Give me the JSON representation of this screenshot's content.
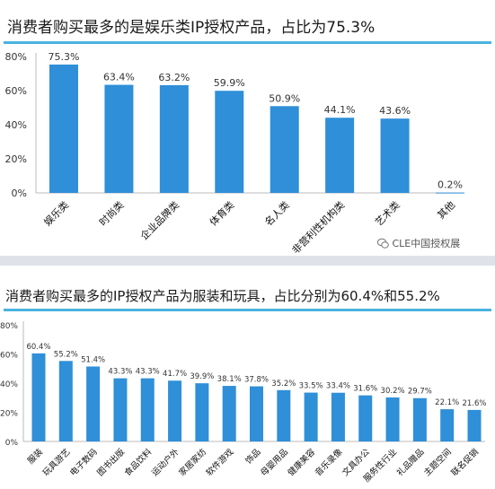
{
  "panel1": {
    "title": "消费者购买最多的是娱乐类IP授权产品，占比为75.3%",
    "watermark": "CLE中国授权展"
  },
  "panel2": {
    "title": "消费者购买最多的IP授权产品为服装和玩具，占比分别为60.4%和55.2%"
  },
  "colors": {
    "bar": "#2f8fd8",
    "rule": "#49b3e0"
  },
  "chart_data": [
    {
      "type": "bar",
      "title": "消费者购买最多的是娱乐类IP授权产品，占比为75.3%",
      "categories": [
        "娱乐类",
        "时尚类",
        "企业品牌类",
        "体育类",
        "名人类",
        "非营利性机构类",
        "艺术类",
        "其他"
      ],
      "values": [
        75.3,
        63.4,
        63.2,
        59.9,
        50.9,
        44.1,
        43.6,
        0.2
      ],
      "value_labels": [
        "75.3%",
        "63.4%",
        "63.2%",
        "59.9%",
        "50.9%",
        "44.1%",
        "43.6%",
        "0.2%"
      ],
      "yticks": [
        "0%",
        "20%",
        "40%",
        "60%",
        "80%"
      ],
      "ylim": [
        0,
        80
      ],
      "grid": false
    },
    {
      "type": "bar",
      "title": "消费者购买最多的IP授权产品为服装和玩具，占比分别为60.4%和55.2%",
      "categories": [
        "服装",
        "玩具游艺",
        "电子数码",
        "图书出版",
        "食品饮料",
        "运动户外",
        "家居家纺",
        "软件游戏",
        "饰品",
        "母婴用品",
        "健康美容",
        "音乐录像",
        "文具办公",
        "服务性行业",
        "礼品赠品",
        "主题空间",
        "联名促销"
      ],
      "values": [
        60.4,
        55.2,
        51.4,
        43.3,
        43.3,
        41.7,
        39.9,
        38.1,
        37.8,
        35.2,
        33.5,
        33.4,
        31.6,
        30.2,
        29.7,
        22.1,
        21.6
      ],
      "value_labels": [
        "60.4%",
        "55.2%",
        "51.4%",
        "43.3%",
        "43.3%",
        "41.7%",
        "39.9%",
        "38.1%",
        "37.8%",
        "35.2%",
        "33.5%",
        "33.4%",
        "31.6%",
        "30.2%",
        "29.7%",
        "22.1%",
        "21.6%"
      ],
      "yticks": [
        "0%",
        "20%",
        "40%",
        "60%",
        "80%"
      ],
      "ylim": [
        0,
        80
      ],
      "grid": false
    }
  ]
}
